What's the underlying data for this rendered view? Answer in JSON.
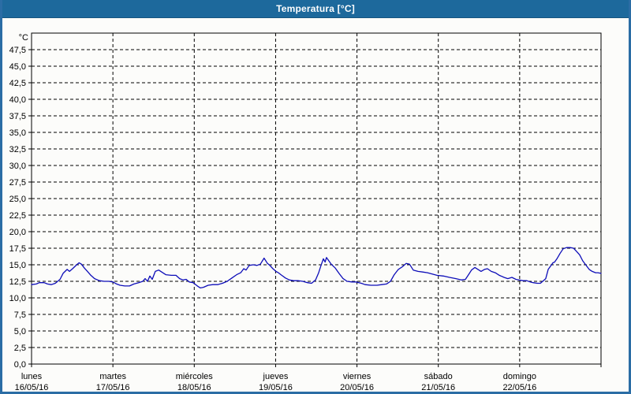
{
  "window": {
    "title": "Temperatura [°C]"
  },
  "colors": {
    "titlebar_bg": "#1d699c",
    "window_border": "#2b6da5",
    "panel_bg": "#fcfcfa",
    "grid": "#000000",
    "axis": "#000000",
    "series_line": "#0d0db8",
    "title_text": "#ffffff",
    "label_text": "#000000"
  },
  "chart_data": {
    "type": "line",
    "title": "Temperatura [°C]",
    "grid": {
      "style": "dashed",
      "h_step_degC": 2.5,
      "v_step_hours": 24
    },
    "legend": "none",
    "y_axis": {
      "unit_label": "°C",
      "min": 0,
      "max": 50,
      "tick_step": 2.5,
      "decimal_separator": ",",
      "ticks": [
        {
          "value": 0,
          "label": "0,0"
        },
        {
          "value": 2.5,
          "label": "2,5"
        },
        {
          "value": 5,
          "label": "5,0"
        },
        {
          "value": 7.5,
          "label": "7,5"
        },
        {
          "value": 10,
          "label": "10,0"
        },
        {
          "value": 12.5,
          "label": "12,5"
        },
        {
          "value": 15,
          "label": "15,0"
        },
        {
          "value": 17.5,
          "label": "17,5"
        },
        {
          "value": 20,
          "label": "20,0"
        },
        {
          "value": 22.5,
          "label": "22,5"
        },
        {
          "value": 25,
          "label": "25,0"
        },
        {
          "value": 27.5,
          "label": "27,5"
        },
        {
          "value": 30,
          "label": "30,0"
        },
        {
          "value": 32.5,
          "label": "32,5"
        },
        {
          "value": 35,
          "label": "35,0"
        },
        {
          "value": 37.5,
          "label": "37,5"
        },
        {
          "value": 40,
          "label": "40,0"
        },
        {
          "value": 42.5,
          "label": "42,5"
        },
        {
          "value": 45,
          "label": "45,0"
        },
        {
          "value": 47.5,
          "label": "47,5"
        }
      ]
    },
    "x_axis": {
      "unit": "hours_from_monday_00h",
      "range_hours": [
        0,
        168
      ],
      "days": [
        {
          "name": "lunes",
          "date": "16/05/16"
        },
        {
          "name": "martes",
          "date": "17/05/16"
        },
        {
          "name": "miércoles",
          "date": "18/05/16"
        },
        {
          "name": "jueves",
          "date": "19/05/16"
        },
        {
          "name": "viernes",
          "date": "20/05/16"
        },
        {
          "name": "sábado",
          "date": "21/05/16"
        },
        {
          "name": "domingo",
          "date": "22/05/16"
        }
      ]
    },
    "series": [
      {
        "name": "Temperatura",
        "color": "#0d0db8",
        "points": [
          [
            0,
            12.0
          ],
          [
            1.4,
            12.1
          ],
          [
            2.3,
            12.3
          ],
          [
            3.7,
            12.3
          ],
          [
            4.7,
            12.1
          ],
          [
            5.8,
            12.0
          ],
          [
            7,
            12.2
          ],
          [
            8.4,
            12.8
          ],
          [
            9.3,
            13.7
          ],
          [
            10.5,
            14.3
          ],
          [
            11.2,
            14.0
          ],
          [
            12.1,
            14.4
          ],
          [
            13.3,
            15.0
          ],
          [
            14,
            15.3
          ],
          [
            14.7,
            15.1
          ],
          [
            15.6,
            14.5
          ],
          [
            16.3,
            14.1
          ],
          [
            17.5,
            13.4
          ],
          [
            18.6,
            12.9
          ],
          [
            20,
            12.6
          ],
          [
            21.4,
            12.5
          ],
          [
            22.8,
            12.5
          ],
          [
            24,
            12.4
          ],
          [
            25.1,
            12.1
          ],
          [
            26.1,
            11.9
          ],
          [
            27.5,
            11.8
          ],
          [
            28.9,
            11.8
          ],
          [
            30.2,
            12.1
          ],
          [
            31.6,
            12.3
          ],
          [
            32.8,
            12.5
          ],
          [
            33.5,
            12.9
          ],
          [
            34.2,
            12.5
          ],
          [
            34.9,
            13.3
          ],
          [
            35.6,
            12.8
          ],
          [
            36.5,
            14.0
          ],
          [
            37.5,
            14.2
          ],
          [
            38.4,
            13.9
          ],
          [
            39.6,
            13.5
          ],
          [
            41.2,
            13.4
          ],
          [
            42.6,
            13.4
          ],
          [
            43.7,
            12.9
          ],
          [
            44.7,
            12.7
          ],
          [
            45.6,
            12.8
          ],
          [
            46.5,
            12.4
          ],
          [
            47.7,
            12.3
          ],
          [
            48.9,
            11.8
          ],
          [
            49.8,
            11.5
          ],
          [
            50.7,
            11.6
          ],
          [
            52.1,
            11.9
          ],
          [
            53.5,
            12.0
          ],
          [
            54.9,
            12.0
          ],
          [
            56.3,
            12.2
          ],
          [
            57.7,
            12.5
          ],
          [
            59.1,
            13.0
          ],
          [
            60.5,
            13.5
          ],
          [
            61.7,
            13.8
          ],
          [
            62.6,
            14.4
          ],
          [
            63.3,
            14.2
          ],
          [
            64.2,
            14.9
          ],
          [
            65.4,
            15.0
          ],
          [
            66.5,
            14.9
          ],
          [
            67.5,
            15.1
          ],
          [
            68.6,
            16.0
          ],
          [
            69.6,
            15.2
          ],
          [
            70.3,
            14.9
          ],
          [
            71.2,
            14.4
          ],
          [
            72.1,
            14.0
          ],
          [
            72.8,
            13.8
          ],
          [
            73.8,
            13.4
          ],
          [
            74.9,
            13.0
          ],
          [
            76.1,
            12.7
          ],
          [
            77.3,
            12.6
          ],
          [
            78.6,
            12.6
          ],
          [
            80,
            12.5
          ],
          [
            81.4,
            12.3
          ],
          [
            82.6,
            12.2
          ],
          [
            83.8,
            12.7
          ],
          [
            84.7,
            13.8
          ],
          [
            85.4,
            14.9
          ],
          [
            86.1,
            15.9
          ],
          [
            86.6,
            15.4
          ],
          [
            87,
            16.1
          ],
          [
            87.7,
            15.6
          ],
          [
            88.4,
            15.1
          ],
          [
            89.6,
            14.5
          ],
          [
            90.7,
            13.7
          ],
          [
            91.9,
            12.9
          ],
          [
            93.1,
            12.5
          ],
          [
            94.5,
            12.4
          ],
          [
            95.6,
            12.4
          ],
          [
            97.3,
            12.2
          ],
          [
            98.4,
            12.0
          ],
          [
            100.1,
            11.9
          ],
          [
            101.9,
            11.9
          ],
          [
            103.3,
            12.0
          ],
          [
            104.7,
            12.1
          ],
          [
            105.9,
            12.5
          ],
          [
            107,
            13.5
          ],
          [
            108.2,
            14.3
          ],
          [
            109.4,
            14.7
          ],
          [
            110.5,
            15.2
          ],
          [
            111.5,
            15.1
          ],
          [
            112.6,
            14.2
          ],
          [
            114,
            14.0
          ],
          [
            115.4,
            13.9
          ],
          [
            116.8,
            13.8
          ],
          [
            118.2,
            13.6
          ],
          [
            119.6,
            13.4
          ],
          [
            121.5,
            13.3
          ],
          [
            123.3,
            13.1
          ],
          [
            125.2,
            12.9
          ],
          [
            126.8,
            12.7
          ],
          [
            128,
            12.8
          ],
          [
            128.9,
            13.5
          ],
          [
            129.8,
            14.2
          ],
          [
            130.8,
            14.6
          ],
          [
            131.7,
            14.3
          ],
          [
            132.6,
            14.0
          ],
          [
            133.6,
            14.3
          ],
          [
            134.5,
            14.4
          ],
          [
            135.6,
            14.0
          ],
          [
            136.8,
            13.8
          ],
          [
            138,
            13.4
          ],
          [
            139.4,
            13.1
          ],
          [
            140.5,
            12.9
          ],
          [
            141.7,
            13.1
          ],
          [
            142.9,
            12.8
          ],
          [
            143.8,
            12.7
          ],
          [
            145,
            12.6
          ],
          [
            146.1,
            12.6
          ],
          [
            147.1,
            12.4
          ],
          [
            148,
            12.3
          ],
          [
            149.2,
            12.2
          ],
          [
            150.1,
            12.2
          ],
          [
            151,
            12.6
          ],
          [
            151.7,
            12.9
          ],
          [
            152.4,
            14.3
          ],
          [
            153.1,
            14.8
          ],
          [
            153.8,
            15.3
          ],
          [
            154.3,
            15.4
          ],
          [
            155,
            15.9
          ],
          [
            155.9,
            16.7
          ],
          [
            156.8,
            17.4
          ],
          [
            157.8,
            17.6
          ],
          [
            158.9,
            17.6
          ],
          [
            159.9,
            17.5
          ],
          [
            160.8,
            17.0
          ],
          [
            161.7,
            16.5
          ],
          [
            162.6,
            15.6
          ],
          [
            163.6,
            14.9
          ],
          [
            164.5,
            14.3
          ],
          [
            165.4,
            14.0
          ],
          [
            166.4,
            13.8
          ],
          [
            167.1,
            13.8
          ],
          [
            168,
            13.7
          ]
        ]
      }
    ]
  }
}
